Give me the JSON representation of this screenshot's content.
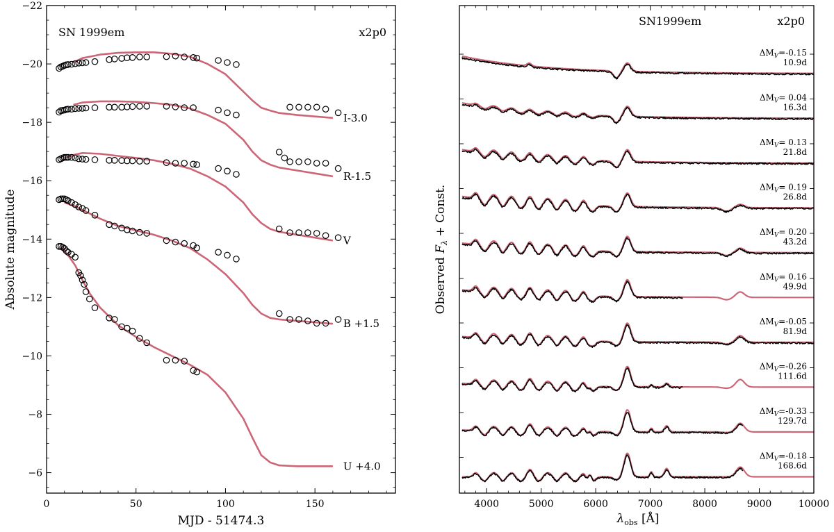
{
  "colors": {
    "model": "#cc6677",
    "observed": "#000000",
    "background": "#ffffff"
  },
  "chart_data": [
    {
      "type": "scatter",
      "title": "SN 1999em",
      "model_label": "x2p0",
      "xlabel": "MJD - 51474.3",
      "ylabel": "Absolute magnitude",
      "xlim": [
        0,
        195
      ],
      "ylim": [
        -5.3,
        -22
      ],
      "y_inverted": true,
      "xticks": [
        0,
        50,
        100,
        150
      ],
      "yticks": [
        -22,
        -20,
        -18,
        -16,
        -14,
        -12,
        -10,
        -8,
        -6
      ],
      "xtick_labels": [
        "0",
        "50",
        "100",
        "150"
      ],
      "ytick_labels": [
        "−22",
        "−20",
        "−18",
        "−16",
        "−14",
        "−12",
        "−10",
        "−8",
        "−6"
      ],
      "grid": false,
      "series": [
        {
          "name": "I-3.0",
          "observed_x": [
            7,
            8,
            9,
            10,
            11,
            12,
            14,
            16,
            18,
            20,
            22,
            27,
            35,
            38,
            42,
            45,
            48,
            52,
            56,
            67,
            72,
            77,
            82,
            84,
            96,
            101,
            106,
            136,
            141,
            146,
            151,
            156,
            163
          ],
          "observed_y": [
            -19.85,
            -19.9,
            -19.92,
            -19.95,
            -19.97,
            -19.98,
            -19.99,
            -20.01,
            -20.03,
            -20.04,
            -20.05,
            -20.08,
            -20.15,
            -20.17,
            -20.19,
            -20.21,
            -20.22,
            -20.24,
            -20.24,
            -20.25,
            -20.27,
            -20.24,
            -20.22,
            -20.2,
            -20.12,
            -20.05,
            -19.98,
            -18.52,
            -18.52,
            -18.52,
            -18.52,
            -18.45,
            -18.33
          ],
          "model_x": [
            15,
            20,
            30,
            40,
            50,
            60,
            70,
            80,
            90,
            100,
            110,
            115,
            120,
            125,
            130,
            140,
            150,
            160
          ],
          "model_y": [
            -20.05,
            -20.2,
            -20.32,
            -20.38,
            -20.4,
            -20.4,
            -20.35,
            -20.25,
            -20.0,
            -19.65,
            -19.05,
            -18.75,
            -18.5,
            -18.4,
            -18.32,
            -18.25,
            -18.2,
            -18.15
          ]
        },
        {
          "name": "R-1.5",
          "observed_x": [
            7,
            8,
            9,
            10,
            11,
            12,
            14,
            16,
            18,
            20,
            22,
            27,
            35,
            38,
            42,
            45,
            48,
            52,
            56,
            67,
            72,
            77,
            82,
            96,
            101,
            106
          ],
          "observed_y": [
            -18.35,
            -18.4,
            -18.41,
            -18.42,
            -18.44,
            -18.45,
            -18.45,
            -18.47,
            -18.48,
            -18.48,
            -18.49,
            -18.5,
            -18.52,
            -18.52,
            -18.52,
            -18.53,
            -18.54,
            -18.55,
            -18.55,
            -18.55,
            -18.53,
            -18.5,
            -18.5,
            -18.42,
            -18.33,
            -18.25
          ],
          "model_x": [
            15,
            20,
            30,
            40,
            50,
            60,
            70,
            80,
            90,
            100,
            110,
            115,
            120,
            125,
            130,
            140,
            150,
            160
          ],
          "model_y": [
            -18.6,
            -18.68,
            -18.72,
            -18.72,
            -18.7,
            -18.66,
            -18.6,
            -18.48,
            -18.25,
            -17.95,
            -17.4,
            -17.0,
            -16.7,
            -16.55,
            -16.45,
            -16.35,
            -16.25,
            -16.15
          ]
        },
        {
          "name": "V",
          "observed_x": [
            7,
            8,
            9,
            10,
            11,
            12,
            14,
            16,
            18,
            20,
            22,
            27,
            35,
            38,
            42,
            45,
            48,
            52,
            56,
            67,
            72,
            77,
            82,
            84,
            96,
            101,
            106,
            130,
            133,
            136,
            141,
            146,
            151,
            156,
            163
          ],
          "observed_y": [
            -16.72,
            -16.75,
            -16.78,
            -16.8,
            -16.8,
            -16.8,
            -16.8,
            -16.78,
            -16.75,
            -16.74,
            -16.73,
            -16.72,
            -16.7,
            -16.7,
            -16.69,
            -16.68,
            -16.68,
            -16.67,
            -16.67,
            -16.62,
            -16.6,
            -16.6,
            -16.57,
            -16.55,
            -16.42,
            -16.33,
            -16.22,
            -16.98,
            -16.78,
            -16.65,
            -16.65,
            -16.65,
            -16.6,
            -16.6,
            -16.42
          ],
          "model_x": [
            10,
            15,
            20,
            30,
            40,
            50,
            60,
            70,
            80,
            90,
            100,
            110,
            115,
            120,
            125,
            130,
            140,
            150,
            160
          ],
          "model_y": [
            -16.78,
            -16.88,
            -16.95,
            -16.92,
            -16.85,
            -16.78,
            -16.7,
            -16.58,
            -16.42,
            -16.15,
            -15.8,
            -15.25,
            -14.85,
            -14.55,
            -14.35,
            -14.25,
            -14.15,
            -14.05,
            -13.95
          ]
        },
        {
          "name": "B +1.5",
          "observed_x": [
            7,
            8,
            9,
            10,
            11,
            12,
            14,
            16,
            18,
            20,
            22,
            27,
            35,
            38,
            42,
            45,
            48,
            52,
            56,
            67,
            72,
            77,
            82,
            84,
            96,
            101,
            106,
            130,
            136,
            141,
            146,
            151,
            156,
            163
          ],
          "observed_y": [
            -15.35,
            -15.38,
            -15.38,
            -15.38,
            -15.35,
            -15.32,
            -15.25,
            -15.18,
            -15.1,
            -15.05,
            -14.98,
            -14.82,
            -14.5,
            -14.45,
            -14.38,
            -14.32,
            -14.28,
            -14.23,
            -14.2,
            -13.95,
            -13.9,
            -13.85,
            -13.78,
            -13.7,
            -13.55,
            -13.45,
            -13.32,
            -14.35,
            -14.22,
            -14.22,
            -14.22,
            -14.2,
            -14.12,
            -14.05
          ],
          "model_x": [
            10,
            15,
            20,
            30,
            40,
            50,
            60,
            70,
            80,
            90,
            100,
            110,
            115,
            120,
            125,
            130,
            140,
            150,
            160
          ],
          "model_y": [
            -15.25,
            -15.15,
            -15.0,
            -14.7,
            -14.45,
            -14.3,
            -14.15,
            -13.95,
            -13.7,
            -13.3,
            -12.8,
            -12.15,
            -11.75,
            -11.45,
            -11.3,
            -11.25,
            -11.2,
            -11.15,
            -11.1
          ]
        },
        {
          "name": "U +4.0",
          "observed_x": [
            7,
            8,
            9,
            10,
            11,
            12,
            14,
            16,
            18,
            19,
            20,
            21,
            22,
            24,
            27,
            35,
            38,
            42,
            45,
            48,
            52,
            56,
            67,
            72,
            77,
            82,
            84,
            130,
            136,
            141,
            146,
            151,
            156,
            163
          ],
          "observed_y": [
            -13.75,
            -13.75,
            -13.72,
            -13.68,
            -13.6,
            -13.55,
            -13.48,
            -13.38,
            -12.85,
            -12.75,
            -12.6,
            -12.45,
            -12.2,
            -11.95,
            -11.65,
            -11.3,
            -11.25,
            -11.0,
            -10.95,
            -10.85,
            -10.6,
            -10.45,
            -9.85,
            -9.85,
            -9.82,
            -9.5,
            -9.45,
            -11.45,
            -11.25,
            -11.25,
            -11.2,
            -11.12,
            -11.12,
            -11.25
          ],
          "model_x": [
            8,
            12,
            16,
            20,
            24,
            30,
            40,
            50,
            60,
            70,
            80,
            90,
            100,
            110,
            115,
            120,
            125,
            130,
            140,
            150,
            160
          ],
          "model_y": [
            -13.75,
            -13.45,
            -13.1,
            -12.6,
            -12.15,
            -11.65,
            -11.05,
            -10.65,
            -10.3,
            -10.0,
            -9.7,
            -9.35,
            -8.75,
            -7.85,
            -7.2,
            -6.6,
            -6.35,
            -6.25,
            -6.22,
            -6.22,
            -6.22
          ]
        }
      ]
    },
    {
      "type": "line",
      "title": "SN1999em",
      "model_label": "x2p0",
      "xlabel": "λ_obs [Å]",
      "xlabel_main": "λ",
      "xlabel_sub": "obs",
      "xlabel_unit": " [Å]",
      "ylabel": "Observed F_λ + Const.",
      "ylabel_pre": "Observed ",
      "ylabel_F": "F",
      "ylabel_sub": "λ",
      "ylabel_post": " + Const.",
      "xlim": [
        3500,
        10000
      ],
      "xticks": [
        4000,
        5000,
        6000,
        7000,
        8000,
        9000,
        10000
      ],
      "xtick_labels": [
        "4000",
        "5000",
        "6000",
        "7000",
        "8000",
        "9000",
        "10000"
      ],
      "yticks_labeled": false,
      "grid": false,
      "spectra": [
        {
          "epoch": "10.9d",
          "delta_mv": "0.15",
          "sign": "-",
          "obs_end": 10000
        },
        {
          "epoch": "16.3d",
          "delta_mv": "0.04",
          "sign": "",
          "obs_end": 10000
        },
        {
          "epoch": "21.8d",
          "delta_mv": "0.13",
          "sign": "",
          "obs_end": 10000
        },
        {
          "epoch": "26.8d",
          "delta_mv": "0.19",
          "sign": "",
          "obs_end": 10000
        },
        {
          "epoch": "43.2d",
          "delta_mv": "0.20",
          "sign": "",
          "obs_end": 10000
        },
        {
          "epoch": "49.9d",
          "delta_mv": "0.16",
          "sign": "",
          "obs_end": 7600
        },
        {
          "epoch": "81.9d",
          "delta_mv": "0.05",
          "sign": "-",
          "obs_end": 10000
        },
        {
          "epoch": "111.6d",
          "delta_mv": "0.26",
          "sign": "-",
          "obs_end": 7600
        },
        {
          "epoch": "129.7d",
          "delta_mv": "0.33",
          "sign": "-",
          "obs_end": 8700
        },
        {
          "epoch": "168.6d",
          "delta_mv": "0.18",
          "sign": "-",
          "obs_end": 8700
        }
      ],
      "label_prefix": "ΔM",
      "label_sub": "V",
      "label_eq": "="
    }
  ]
}
